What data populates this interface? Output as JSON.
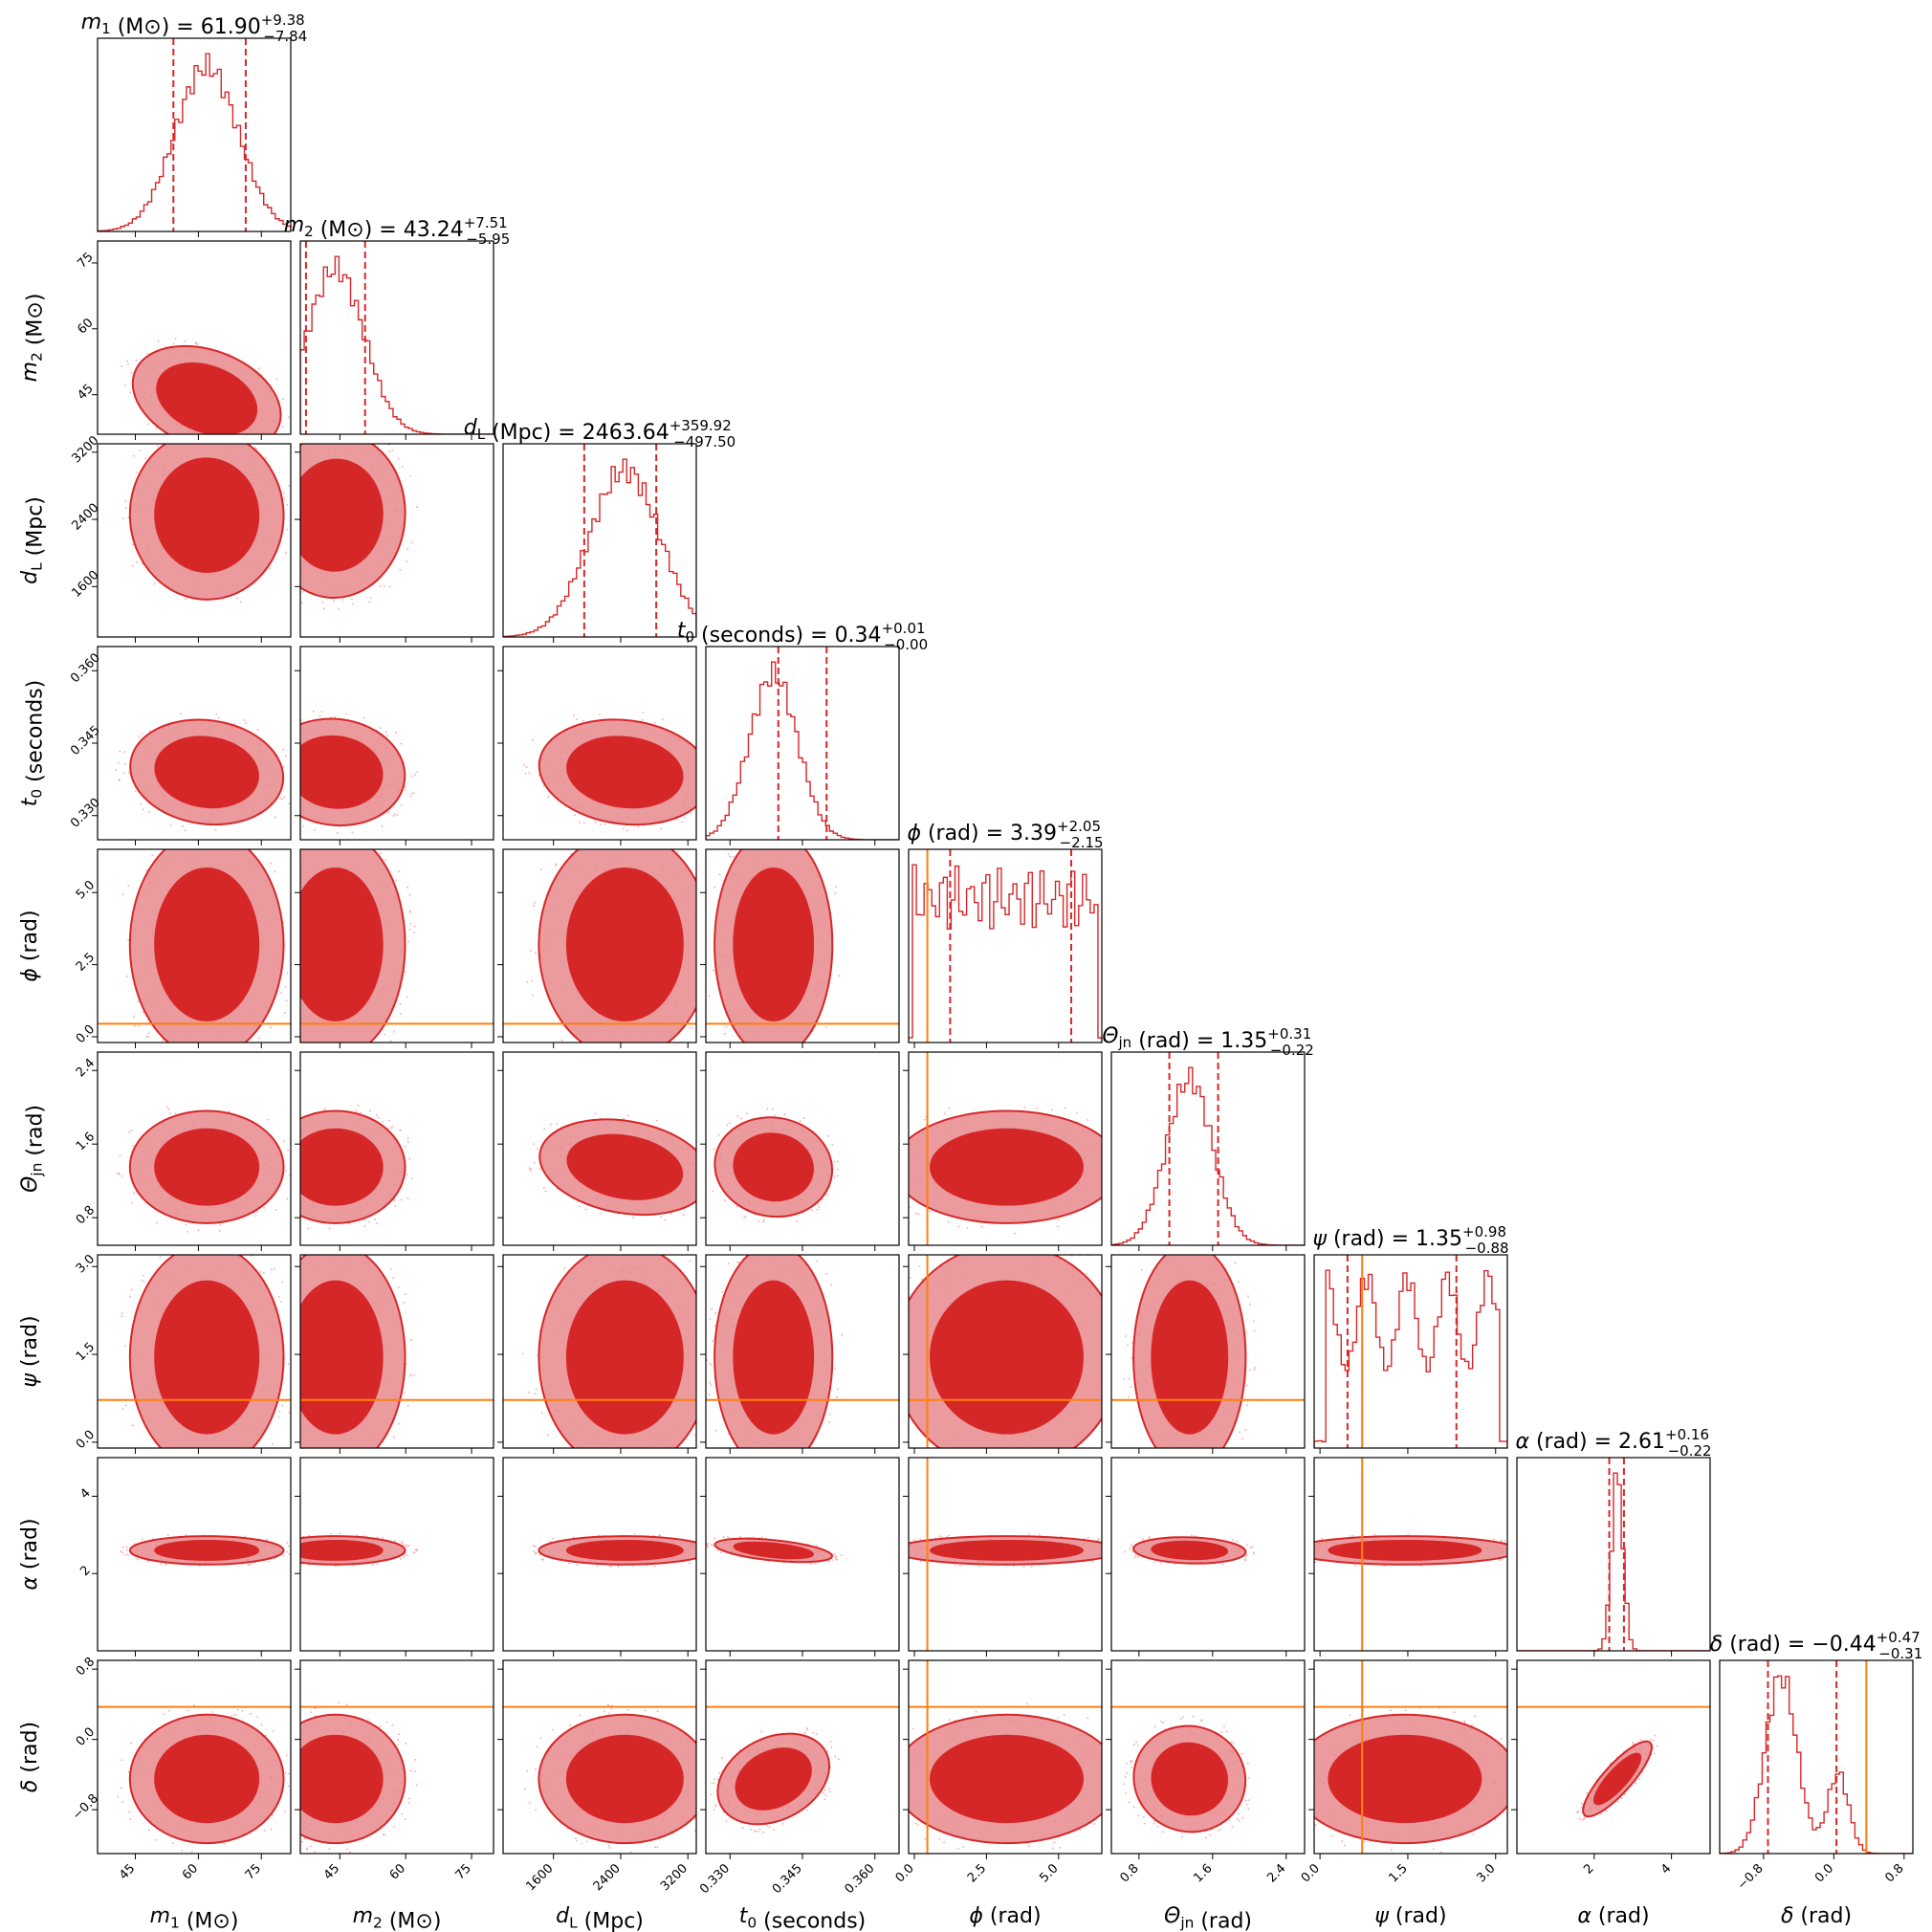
{
  "figure": {
    "type": "corner-plot"
  },
  "colors": {
    "posterior": "#d62728",
    "contour_inner": "#d62728",
    "contour_outer": "#e8888c",
    "samples": "#f4a6ab",
    "truth": "#ff7f0e",
    "axes": "#000000"
  },
  "chart_data": {
    "type": "corner",
    "parameters": [
      {
        "key": "m1",
        "xlabel": "m₁ (M⊙)",
        "ylabel": "m₁ (M⊙)",
        "title": "m₁ (M⊙) = 61.90",
        "median": 61.9,
        "err_plus": 9.38,
        "err_minus": 7.84,
        "range": [
          36,
          82
        ],
        "ticks": [
          45,
          60,
          75
        ],
        "tick_labels": [
          "45",
          "60",
          "75"
        ],
        "truth": null,
        "mean": 62,
        "sd": 7.5,
        "bimodal": null
      },
      {
        "key": "m2",
        "xlabel": "m₂ (M⊙)",
        "ylabel": "m₂ (M⊙)",
        "title": "m₂ (M⊙) = 43.24",
        "median": 43.24,
        "err_plus": 7.51,
        "err_minus": 5.95,
        "range": [
          36,
          80
        ],
        "ticks": [
          45,
          60,
          75
        ],
        "tick_labels": [
          "45",
          "60",
          "75"
        ],
        "truth": null,
        "mean": 44,
        "sd": 6.5,
        "bimodal": null
      },
      {
        "key": "dL",
        "xlabel": "d_L (Mpc)",
        "ylabel": "d_L (Mpc)",
        "title": "d_L (Mpc) = 2463.64",
        "median": 2463.64,
        "err_plus": 359.92,
        "err_minus": 497.5,
        "range": [
          1000,
          3300
        ],
        "ticks": [
          1600,
          2400,
          3200
        ],
        "tick_labels": [
          "1600",
          "2400",
          "3200"
        ],
        "truth": null,
        "mean": 2450,
        "sd": 420,
        "bimodal": null
      },
      {
        "key": "t0",
        "xlabel": "t₀ (seconds)",
        "ylabel": "t₀ (seconds)",
        "title": "t₀ (seconds) = 0.34",
        "median": 0.34,
        "err_plus": 0.01,
        "err_minus": 0.0,
        "range": [
          0.325,
          0.365
        ],
        "ticks": [
          0.33,
          0.345,
          0.36
        ],
        "tick_labels": [
          "0.330",
          "0.345",
          "0.360"
        ],
        "truth": null,
        "mean": 0.339,
        "sd": 0.005,
        "bimodal": null
      },
      {
        "key": "phi",
        "xlabel": "ϕ (rad)",
        "ylabel": "ϕ (rad)",
        "title": "ϕ (rad) = 3.39",
        "median": 3.39,
        "err_plus": 2.05,
        "err_minus": 2.15,
        "range": [
          -0.2,
          6.5
        ],
        "ticks": [
          0.0,
          2.5,
          5.0
        ],
        "tick_labels": [
          "0.0",
          "2.5",
          "5.0"
        ],
        "truth": 0.45,
        "mean": 3.2,
        "sd": 1.8,
        "bimodal": null
      },
      {
        "key": "theta",
        "xlabel": "Θ_jn (rad)",
        "ylabel": "Θ_jn (rad)",
        "title": "Θ_jn (rad) = 1.35",
        "median": 1.35,
        "err_plus": 0.31,
        "err_minus": 0.22,
        "range": [
          0.5,
          2.6
        ],
        "ticks": [
          0.8,
          1.6,
          2.4
        ],
        "tick_labels": [
          "0.8",
          "1.6",
          "2.4"
        ],
        "truth": null,
        "mean": 1.35,
        "sd": 0.25,
        "bimodal": null
      },
      {
        "key": "psi",
        "xlabel": "ψ (rad)",
        "ylabel": "ψ (rad)",
        "title": "ψ (rad) = 1.35",
        "median": 1.35,
        "err_plus": 0.98,
        "err_minus": 0.88,
        "range": [
          -0.1,
          3.2
        ],
        "ticks": [
          0.0,
          1.5,
          3.0
        ],
        "tick_labels": [
          "0.0",
          "1.5",
          "3.0"
        ],
        "truth": 0.72,
        "mean": 1.45,
        "sd": 0.85,
        "bimodal": null
      },
      {
        "key": "alpha",
        "xlabel": "α (rad)",
        "ylabel": "α (rad)",
        "title": "α (rad) = 2.61",
        "median": 2.61,
        "err_plus": 0.16,
        "err_minus": 0.22,
        "range": [
          0.0,
          5.0
        ],
        "ticks": [
          2,
          4
        ],
        "tick_labels": [
          "2",
          "4"
        ],
        "truth": null,
        "mean": 2.6,
        "sd": 0.15,
        "bimodal": null
      },
      {
        "key": "delta",
        "xlabel": "δ (rad)",
        "ylabel": "δ (rad)",
        "title": "δ (rad) = −0.44",
        "median": -0.44,
        "err_plus": 0.47,
        "err_minus": 0.31,
        "range": [
          -1.3,
          0.9
        ],
        "ticks": [
          -0.8,
          0.0,
          0.8
        ],
        "tick_labels": [
          "−0.8",
          "0.0",
          "0.8"
        ],
        "truth": 0.37,
        "mean": -0.45,
        "sd": 0.3,
        "bimodal": [
          -0.6,
          0.05,
          0.65
        ]
      }
    ],
    "correlations": {
      "m1-m2": -0.75,
      "m1-dL": 0.05,
      "m2-dL": -0.1,
      "m1-t0": -0.3,
      "m2-t0": -0.25,
      "dL-t0": -0.3,
      "theta-dL": -0.45,
      "t0-theta": -0.3,
      "t0-alpha": -0.7,
      "t0-delta": 0.9,
      "theta-delta": -0.45,
      "alpha-delta": -0.6,
      "alpha-theta": -0.2
    }
  }
}
